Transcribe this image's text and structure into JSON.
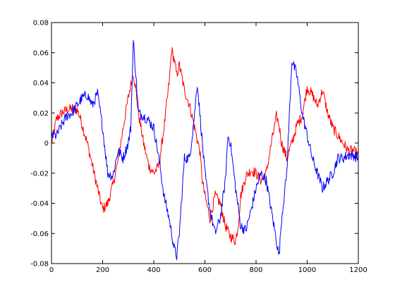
{
  "chart_data": {
    "type": "line",
    "title": "",
    "xlabel": "",
    "ylabel": "",
    "xlim": [
      0,
      1200
    ],
    "ylim": [
      -0.08,
      0.08
    ],
    "xticks": [
      0,
      200,
      400,
      600,
      800,
      1000,
      1200
    ],
    "yticks": [
      -0.08,
      -0.06,
      -0.04,
      -0.02,
      0,
      0.02,
      0.04,
      0.06,
      0.08
    ],
    "xtick_labels": [
      "0",
      "200",
      "400",
      "600",
      "800",
      "1000",
      "1200"
    ],
    "ytick_labels": [
      "-0.08",
      "-0.06",
      "-0.04",
      "-0.02",
      "0",
      "0.02",
      "0.04",
      "0.06",
      "0.08"
    ],
    "grid": false,
    "series": [
      {
        "color": "#ff0000",
        "x": [
          0,
          20,
          40,
          60,
          80,
          100,
          110,
          120,
          140,
          160,
          180,
          200,
          220,
          240,
          260,
          280,
          300,
          320,
          330,
          340,
          360,
          380,
          400,
          420,
          440,
          460,
          470,
          480,
          490,
          500,
          520,
          540,
          560,
          580,
          590,
          600,
          620,
          640,
          660,
          680,
          700,
          720,
          730,
          740,
          760,
          780,
          800,
          820,
          840,
          860,
          880,
          890,
          900,
          920,
          940,
          960,
          980,
          1000,
          1020,
          1040,
          1060,
          1080,
          1100,
          1120,
          1140,
          1160,
          1180,
          1200
        ],
        "y": [
          0.0,
          0.016,
          0.02,
          0.022,
          0.023,
          0.022,
          0.018,
          0.012,
          0.0,
          -0.015,
          -0.03,
          -0.044,
          -0.04,
          -0.028,
          -0.012,
          0.01,
          0.03,
          0.047,
          0.035,
          0.02,
          0.0,
          -0.015,
          -0.02,
          -0.015,
          0.01,
          0.04,
          0.062,
          0.055,
          0.045,
          0.052,
          0.035,
          0.025,
          0.01,
          -0.005,
          -0.025,
          -0.035,
          -0.05,
          -0.035,
          -0.04,
          -0.055,
          -0.062,
          -0.065,
          -0.055,
          -0.035,
          -0.022,
          -0.018,
          -0.02,
          -0.025,
          -0.02,
          0.0,
          0.018,
          0.012,
          0.0,
          -0.01,
          0.0,
          0.012,
          0.018,
          0.037,
          0.032,
          0.025,
          0.035,
          0.02,
          0.01,
          0.005,
          0.0,
          -0.005,
          -0.005,
          -0.008
        ]
      },
      {
        "color": "#0000ff",
        "x": [
          0,
          20,
          40,
          60,
          80,
          100,
          120,
          140,
          160,
          180,
          200,
          220,
          240,
          260,
          280,
          300,
          310,
          320,
          330,
          340,
          360,
          380,
          400,
          420,
          440,
          460,
          480,
          490,
          500,
          520,
          540,
          560,
          570,
          580,
          600,
          620,
          640,
          660,
          680,
          690,
          700,
          720,
          740,
          760,
          780,
          800,
          820,
          840,
          860,
          880,
          890,
          900,
          920,
          940,
          960,
          980,
          1000,
          1020,
          1040,
          1060,
          1080,
          1100,
          1120,
          1140,
          1160,
          1180,
          1200
        ],
        "y": [
          0.005,
          0.005,
          0.012,
          0.018,
          0.02,
          0.025,
          0.03,
          0.032,
          0.025,
          0.033,
          0.01,
          -0.02,
          -0.022,
          -0.005,
          -0.01,
          0.0,
          0.01,
          0.068,
          0.045,
          0.02,
          0.018,
          0.015,
          0.01,
          -0.01,
          -0.035,
          -0.05,
          -0.07,
          -0.075,
          -0.06,
          -0.01,
          -0.01,
          0.02,
          0.04,
          0.02,
          -0.02,
          -0.045,
          -0.06,
          -0.05,
          -0.025,
          0.005,
          0.0,
          -0.03,
          -0.055,
          -0.058,
          -0.045,
          -0.03,
          -0.02,
          -0.025,
          -0.045,
          -0.065,
          -0.075,
          -0.05,
          -0.02,
          0.055,
          0.045,
          0.02,
          0.005,
          -0.01,
          -0.02,
          -0.03,
          -0.025,
          -0.02,
          -0.01,
          -0.01,
          -0.008,
          -0.008,
          -0.01
        ]
      }
    ]
  }
}
